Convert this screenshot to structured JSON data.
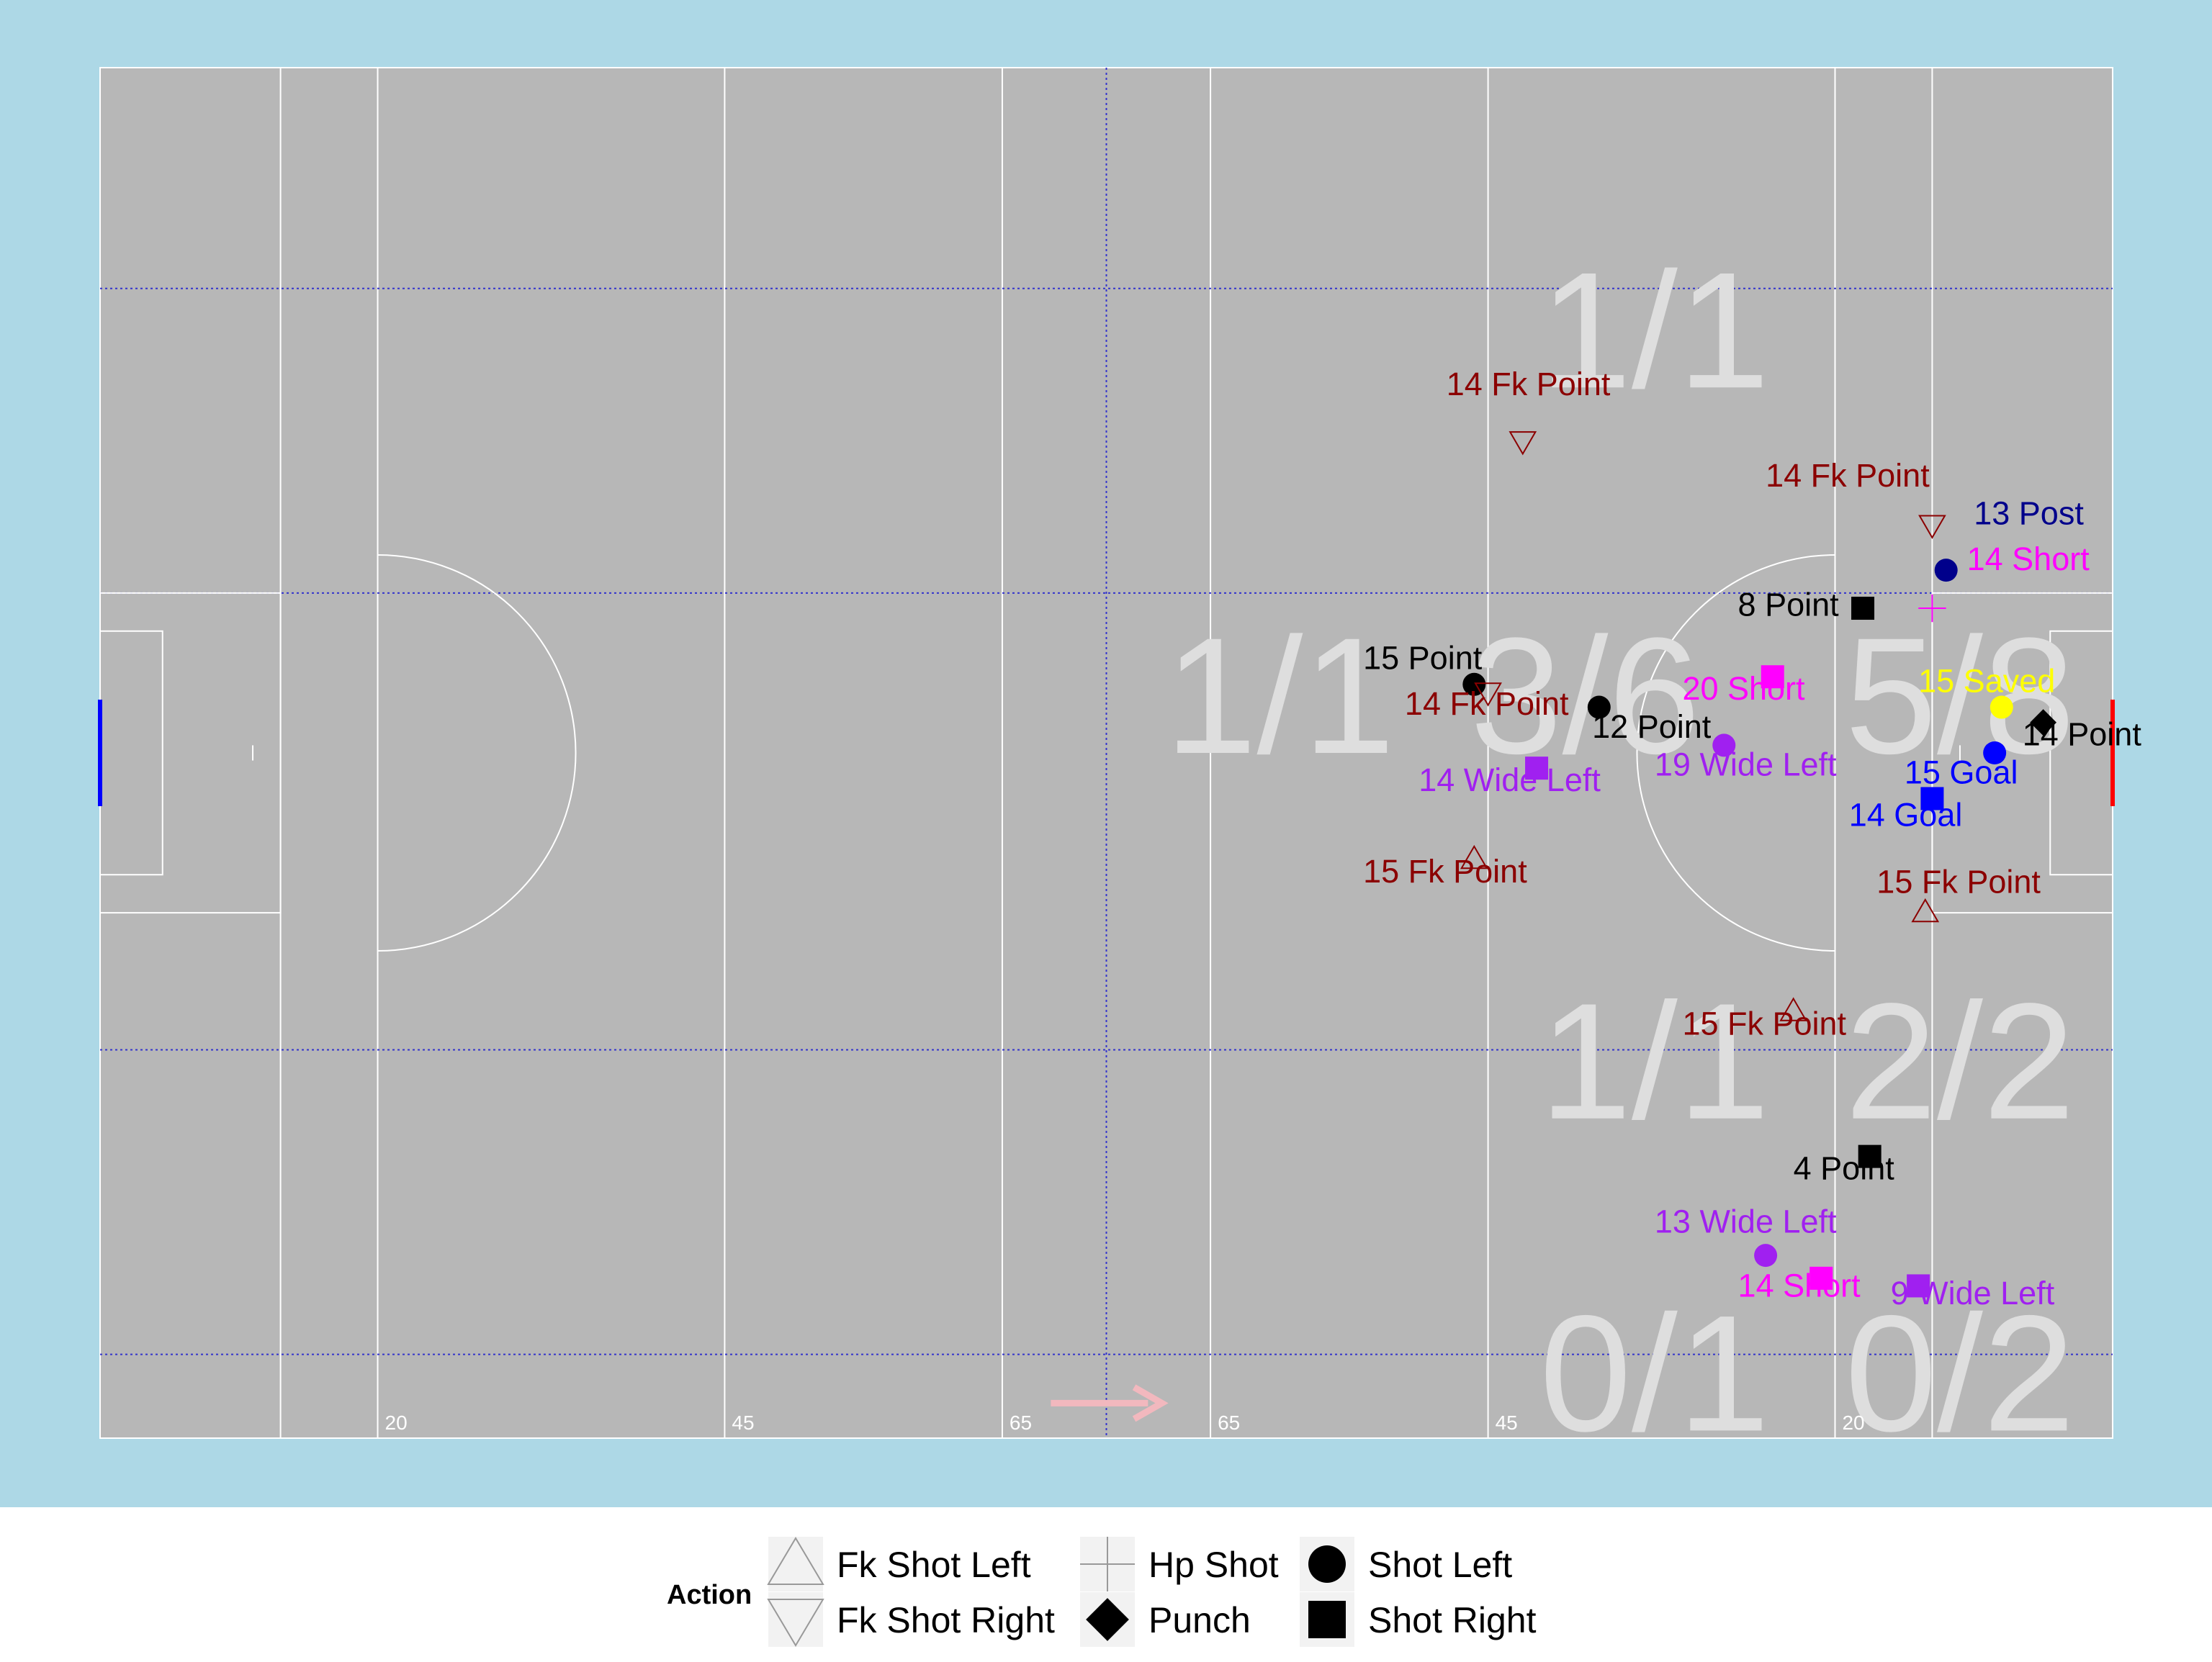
{
  "chart_data": {
    "type": "scatter",
    "x_range": [
      0,
      145
    ],
    "y_range": [
      0,
      90
    ],
    "colors": {
      "background": "#add8e6",
      "pitch": "#b7b7b7",
      "Fk Point": "#8b0000",
      "Point": "#000000",
      "Short": "#ff00ff",
      "Wide Left": "#a020f0",
      "Goal": "#0000ff",
      "Post": "#00008b",
      "Saved": "#ffff00",
      "left_goal": "#0000ff",
      "right_goal": "#ff0000"
    },
    "distance_labels": [
      {
        "x": 20,
        "text": "20"
      },
      {
        "x": 45,
        "text": "45"
      },
      {
        "x": 65,
        "text": "65"
      },
      {
        "x": 80,
        "text": "65"
      },
      {
        "x": 100,
        "text": "45"
      },
      {
        "x": 125,
        "text": "20"
      }
    ],
    "zone_labels": [
      {
        "x": 112,
        "y": 69,
        "text": "1/1"
      },
      {
        "x": 85,
        "y": 45,
        "text": "1/1"
      },
      {
        "x": 107,
        "y": 45,
        "text": "3/6"
      },
      {
        "x": 134,
        "y": 45,
        "text": "5/8"
      },
      {
        "x": 112,
        "y": 21,
        "text": "1/1"
      },
      {
        "x": 134,
        "y": 21,
        "text": "2/2"
      },
      {
        "x": 112,
        "y": 0.5,
        "text": "0/1"
      },
      {
        "x": 134,
        "y": 0.5,
        "text": "0/2"
      }
    ],
    "points": [
      {
        "x": 102.5,
        "y": 65.5,
        "shape": "tri-down",
        "result": "Fk Point",
        "label": "14 Fk Point",
        "lx": 97,
        "ly": 68.5
      },
      {
        "x": 132,
        "y": 60,
        "shape": "tri-down",
        "result": "Fk Point",
        "label": "14 Fk Point",
        "lx": 120,
        "ly": 62.5
      },
      {
        "x": 133,
        "y": 57,
        "shape": "circle",
        "result": "Post",
        "label": "13 Post",
        "lx": 135,
        "ly": 60
      },
      {
        "x": 132,
        "y": 54.5,
        "shape": "cross",
        "result": "Short",
        "label": "14 Short",
        "lx": 134.5,
        "ly": 57
      },
      {
        "x": 127,
        "y": 54.5,
        "shape": "square",
        "result": "Point",
        "label": "8 Point",
        "lx": 118,
        "ly": 54
      },
      {
        "x": 120.5,
        "y": 50,
        "shape": "square",
        "result": "Short",
        "label": "20 Short",
        "lx": 114,
        "ly": 48.5
      },
      {
        "x": 99,
        "y": 49.5,
        "shape": "circle",
        "result": "Point",
        "label": "15 Point",
        "lx": 91,
        "ly": 50.5
      },
      {
        "x": 100,
        "y": 49,
        "shape": "tri-down",
        "result": "Fk Point",
        "label": "14 Fk Point",
        "lx": 94,
        "ly": 47.5
      },
      {
        "x": 108,
        "y": 48,
        "shape": "circle",
        "result": "Point",
        "label": "12 Point",
        "lx": 107.5,
        "ly": 46
      },
      {
        "x": 137,
        "y": 48,
        "shape": "circle",
        "result": "Saved",
        "label": "15 Saved",
        "lx": 131,
        "ly": 49
      },
      {
        "x": 140,
        "y": 47,
        "shape": "diamond",
        "result": "Point",
        "label": "14 Point",
        "lx": 138.5,
        "ly": 45.5
      },
      {
        "x": 117,
        "y": 45.5,
        "shape": "circle",
        "result": "Wide Left",
        "label": "19 Wide Left",
        "lx": 112,
        "ly": 43.5
      },
      {
        "x": 103.5,
        "y": 44,
        "shape": "square",
        "result": "Wide Left",
        "label": "14 Wide Left",
        "lx": 95,
        "ly": 42.5
      },
      {
        "x": 136.5,
        "y": 45,
        "shape": "circle",
        "result": "Goal",
        "label": "15 Goal",
        "lx": 130,
        "ly": 43
      },
      {
        "x": 132,
        "y": 42,
        "shape": "square",
        "result": "Goal",
        "label": "14 Goal",
        "lx": 126,
        "ly": 40.2
      },
      {
        "x": 99,
        "y": 38,
        "shape": "tri-up",
        "result": "Fk Point",
        "label": "15 Fk Point",
        "lx": 91,
        "ly": 36.5
      },
      {
        "x": 131.5,
        "y": 34.5,
        "shape": "tri-up",
        "result": "Fk Point",
        "label": "15 Fk Point",
        "lx": 128,
        "ly": 35.8
      },
      {
        "x": 122,
        "y": 28,
        "shape": "tri-up",
        "result": "Fk Point",
        "label": "15 Fk Point",
        "lx": 114,
        "ly": 26.5
      },
      {
        "x": 127.5,
        "y": 18.5,
        "shape": "square",
        "result": "Point",
        "label": "4 Point",
        "lx": 122,
        "ly": 17
      },
      {
        "x": 120,
        "y": 12,
        "shape": "circle",
        "result": "Wide Left",
        "label": "13 Wide Left",
        "lx": 112,
        "ly": 13.5
      },
      {
        "x": 124,
        "y": 10.5,
        "shape": "square",
        "result": "Short",
        "label": "14 Short",
        "lx": 118,
        "ly": 9.3
      },
      {
        "x": 131,
        "y": 10,
        "shape": "square",
        "result": "Wide Left",
        "label": "9 Wide Left",
        "lx": 129,
        "ly": 8.8
      }
    ],
    "legend": {
      "title": "Action",
      "items": [
        {
          "shape": "tri-up",
          "label": "Fk Shot Left"
        },
        {
          "shape": "tri-down",
          "label": "Fk Shot Right"
        },
        {
          "shape": "cross",
          "label": "Hp Shot"
        },
        {
          "shape": "diamond",
          "label": "Punch"
        },
        {
          "shape": "circle",
          "label": "Shot Left"
        },
        {
          "shape": "square",
          "label": "Shot Right"
        }
      ]
    }
  }
}
